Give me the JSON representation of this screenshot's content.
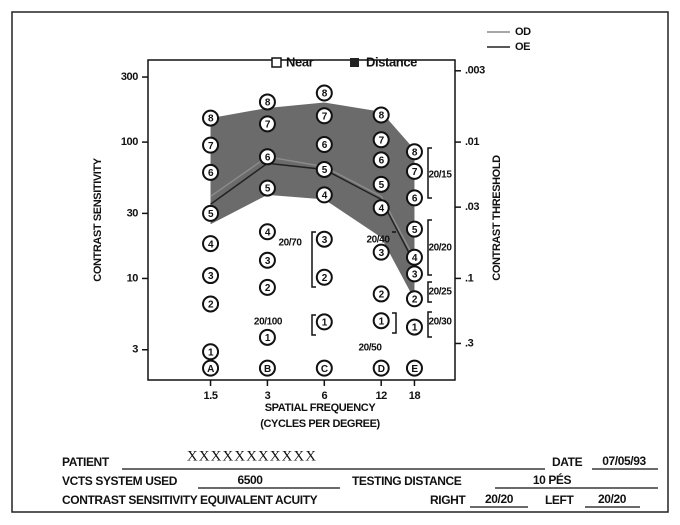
{
  "chart_data": {
    "type": "contrast-sensitivity",
    "legend_labels": [
      "Near",
      "Distance"
    ],
    "x_label": "SPATIAL FREQUENCY",
    "x_label_sub": "(CYCLES PER DEGREE)",
    "y_label": "CONTRAST SENSITIVITY",
    "y2_label": "CONTRAST THRESHOLD",
    "x_scale": "log",
    "y_scale": "log",
    "xlim": [
      0.7,
      29.5
    ],
    "xticks": [
      1.5,
      3,
      6,
      12,
      18
    ],
    "ylim": [
      1.8,
      400
    ],
    "yticks": [
      300,
      100,
      30,
      10,
      3
    ],
    "y2lim": [
      0.556,
      0.0025
    ],
    "y2ticks": [
      {
        "value": 0.003,
        "label": ".003"
      },
      {
        "value": 0.01,
        "label": ".01"
      },
      {
        "value": 0.03,
        "label": ".03"
      },
      {
        "value": 0.1,
        "label": ".1"
      },
      {
        "value": 0.3,
        "label": ".3"
      }
    ],
    "x": [
      1.5,
      3,
      6,
      12,
      18
    ],
    "normal_range": {
      "color": "#6b6b6b",
      "upper": [
        150,
        178,
        195,
        167,
        88
      ],
      "lower": [
        25,
        41,
        38,
        20,
        7
      ]
    },
    "series": [
      {
        "name": "OD",
        "color": "#8a8a8a",
        "values": [
          40,
          78,
          66,
          40,
          14
        ]
      },
      {
        "name": "OE",
        "color": "#222222",
        "values": [
          35,
          70,
          63,
          38,
          12.9
        ]
      }
    ],
    "patches": [
      {
        "x": 1.5,
        "values": [
          150,
          95,
          60,
          30,
          18,
          10.5,
          6.5,
          2.9,
          2.2
        ],
        "labels": [
          "8",
          "7",
          "6",
          "5",
          "4",
          "3",
          "2",
          "1",
          "A"
        ]
      },
      {
        "x": 3,
        "values": [
          197,
          136,
          78,
          46,
          22,
          13.6,
          8.6,
          3.7,
          2.2
        ],
        "labels": [
          "8",
          "7",
          "6",
          "5",
          "4",
          "3",
          "2",
          "1",
          "B"
        ]
      },
      {
        "x": 6,
        "values": [
          229,
          156,
          96,
          63,
          41,
          19.4,
          10.2,
          4.8,
          2.2
        ],
        "labels": [
          "8",
          "7",
          "6",
          "5",
          "4",
          "3",
          "2",
          "1",
          "C"
        ]
      },
      {
        "x": 12,
        "values": [
          158,
          104,
          74,
          49,
          33,
          15.6,
          7.7,
          4.9,
          2.2
        ],
        "labels": [
          "8",
          "7",
          "6",
          "5",
          "4",
          "3",
          "2",
          "1",
          "D"
        ]
      },
      {
        "x": 18,
        "values": [
          85,
          61,
          39,
          23,
          14.3,
          10.8,
          7.1,
          4.4,
          2.2
        ],
        "labels": [
          "8",
          "7",
          "6",
          "5",
          "4",
          "3",
          "2",
          "1",
          "E"
        ]
      }
    ],
    "acuity_marks": [
      "20/70",
      "20/100",
      "20/40",
      "20/50",
      "20/15",
      "20/20",
      "20/25",
      "20/30"
    ]
  },
  "form": {
    "patient_label": "PATIENT",
    "patient": "XXXXXXXXXXX",
    "date_label": "DATE",
    "date": "07/05/93",
    "system_label": "VCTS SYSTEM USED",
    "system": "6500",
    "distance_label": "TESTING DISTANCE",
    "distance": "10 PÉS",
    "acuity_label": "CONTRAST SENSITIVITY EQUIVALENT ACUITY",
    "right_label": "RIGHT",
    "right": "20/20",
    "left_label": "LEFT",
    "left": "20/20"
  }
}
